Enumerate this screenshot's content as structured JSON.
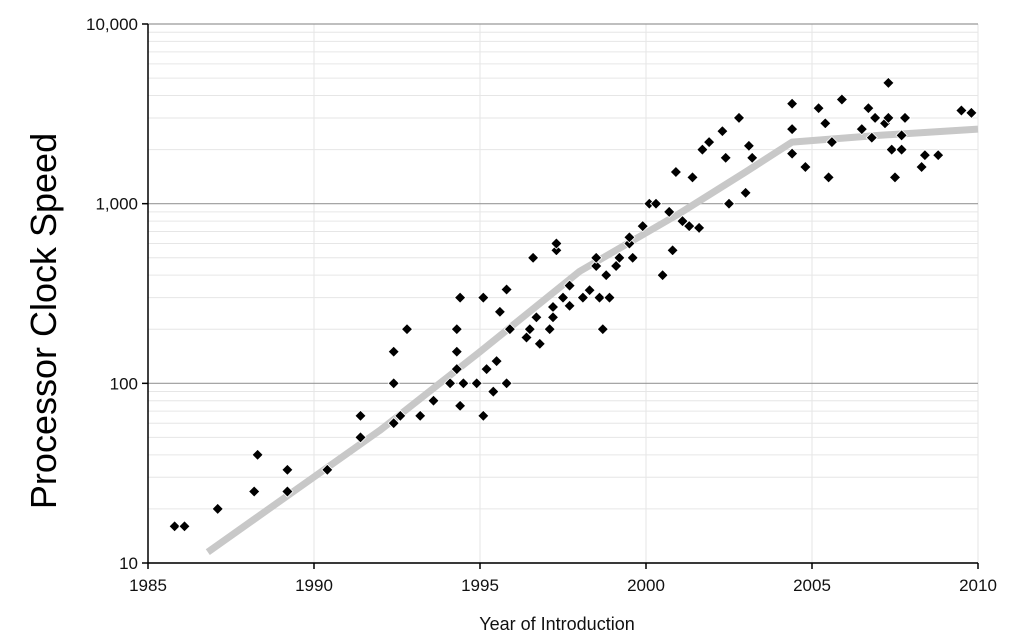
{
  "chart_data": {
    "type": "scatter",
    "xlabel": "Year of Introduction",
    "ylabel": "Processor Clock Speed",
    "xlim": [
      1985,
      2010
    ],
    "ylim": [
      10,
      10000
    ],
    "yscale": "log",
    "x_ticks": [
      "1985",
      "1990",
      "1995",
      "2000",
      "2005",
      "2010"
    ],
    "y_ticks": [
      "10",
      "100",
      "1,000",
      "10,000"
    ],
    "grid": true,
    "legend": "none",
    "colors": {
      "points": "#000000",
      "trend": "#c8c8c8",
      "major_grid": "#999999",
      "minor_grid": "#e6e6e6"
    },
    "series": [
      {
        "type": "scatter",
        "points": [
          [
            1985.8,
            16
          ],
          [
            1986.1,
            16
          ],
          [
            1987.1,
            20
          ],
          [
            1988.2,
            25
          ],
          [
            1988.3,
            40
          ],
          [
            1989.2,
            25
          ],
          [
            1989.2,
            33
          ],
          [
            1990.4,
            33
          ],
          [
            1991.4,
            50
          ],
          [
            1991.4,
            66
          ],
          [
            1992.4,
            60
          ],
          [
            1992.4,
            100
          ],
          [
            1992.4,
            150
          ],
          [
            1992.6,
            66
          ],
          [
            1992.8,
            200
          ],
          [
            1993.2,
            66
          ],
          [
            1993.6,
            80
          ],
          [
            1994.1,
            100
          ],
          [
            1994.3,
            120
          ],
          [
            1994.3,
            150
          ],
          [
            1994.3,
            200
          ],
          [
            1994.4,
            75
          ],
          [
            1994.4,
            300
          ],
          [
            1994.5,
            100
          ],
          [
            1994.9,
            100
          ],
          [
            1995.1,
            66
          ],
          [
            1995.1,
            300
          ],
          [
            1995.2,
            120
          ],
          [
            1995.4,
            90
          ],
          [
            1995.5,
            133
          ],
          [
            1995.6,
            250
          ],
          [
            1995.8,
            100
          ],
          [
            1995.8,
            333
          ],
          [
            1995.9,
            200
          ],
          [
            1996.4,
            180
          ],
          [
            1996.5,
            200
          ],
          [
            1996.6,
            500
          ],
          [
            1996.7,
            233
          ],
          [
            1996.8,
            166
          ],
          [
            1997.1,
            200
          ],
          [
            1997.2,
            266
          ],
          [
            1997.2,
            233
          ],
          [
            1997.3,
            550
          ],
          [
            1997.3,
            600
          ],
          [
            1997.5,
            300
          ],
          [
            1997.7,
            350
          ],
          [
            1997.7,
            270
          ],
          [
            1998.1,
            300
          ],
          [
            1998.3,
            330
          ],
          [
            1998.5,
            450
          ],
          [
            1998.5,
            500
          ],
          [
            1998.6,
            300
          ],
          [
            1998.7,
            200
          ],
          [
            1998.8,
            400
          ],
          [
            1998.9,
            300
          ],
          [
            1999.1,
            450
          ],
          [
            1999.2,
            500
          ],
          [
            1999.5,
            600
          ],
          [
            1999.5,
            650
          ],
          [
            1999.6,
            500
          ],
          [
            1999.9,
            750
          ],
          [
            2000.1,
            1000
          ],
          [
            2000.3,
            1000
          ],
          [
            2000.5,
            400
          ],
          [
            2000.7,
            900
          ],
          [
            2000.8,
            550
          ],
          [
            2000.9,
            1500
          ],
          [
            2001.1,
            800
          ],
          [
            2001.3,
            750
          ],
          [
            2001.4,
            1400
          ],
          [
            2001.6,
            733
          ],
          [
            2001.7,
            2000
          ],
          [
            2001.9,
            2200
          ],
          [
            2002.3,
            2530
          ],
          [
            2002.4,
            1800
          ],
          [
            2002.5,
            1000
          ],
          [
            2002.8,
            3000
          ],
          [
            2003.0,
            1150
          ],
          [
            2003.1,
            2100
          ],
          [
            2003.2,
            1800
          ],
          [
            2004.4,
            1900
          ],
          [
            2004.4,
            2600
          ],
          [
            2004.4,
            3600
          ],
          [
            2004.8,
            1600
          ],
          [
            2005.2,
            3400
          ],
          [
            2005.4,
            2800
          ],
          [
            2005.5,
            1400
          ],
          [
            2005.6,
            2200
          ],
          [
            2005.9,
            3800
          ],
          [
            2006.5,
            2600
          ],
          [
            2006.7,
            3400
          ],
          [
            2006.8,
            2330
          ],
          [
            2006.9,
            3000
          ],
          [
            2007.2,
            2800
          ],
          [
            2007.3,
            3000
          ],
          [
            2007.3,
            4700
          ],
          [
            2007.4,
            2000
          ],
          [
            2007.5,
            1400
          ],
          [
            2007.7,
            2400
          ],
          [
            2007.7,
            2000
          ],
          [
            2007.8,
            3000
          ],
          [
            2008.3,
            1600
          ],
          [
            2008.4,
            1860
          ],
          [
            2008.8,
            1860
          ],
          [
            2009.5,
            3300
          ],
          [
            2009.8,
            3200
          ]
        ]
      },
      {
        "type": "line",
        "trend": true,
        "points": [
          [
            1986.8,
            11.5
          ],
          [
            1992.0,
            55
          ],
          [
            1995.0,
            150
          ],
          [
            1998.0,
            420
          ],
          [
            2001.0,
            880
          ],
          [
            2003.0,
            1500
          ],
          [
            2004.4,
            2200
          ],
          [
            2007.0,
            2400
          ],
          [
            2010.0,
            2600
          ]
        ]
      }
    ]
  }
}
